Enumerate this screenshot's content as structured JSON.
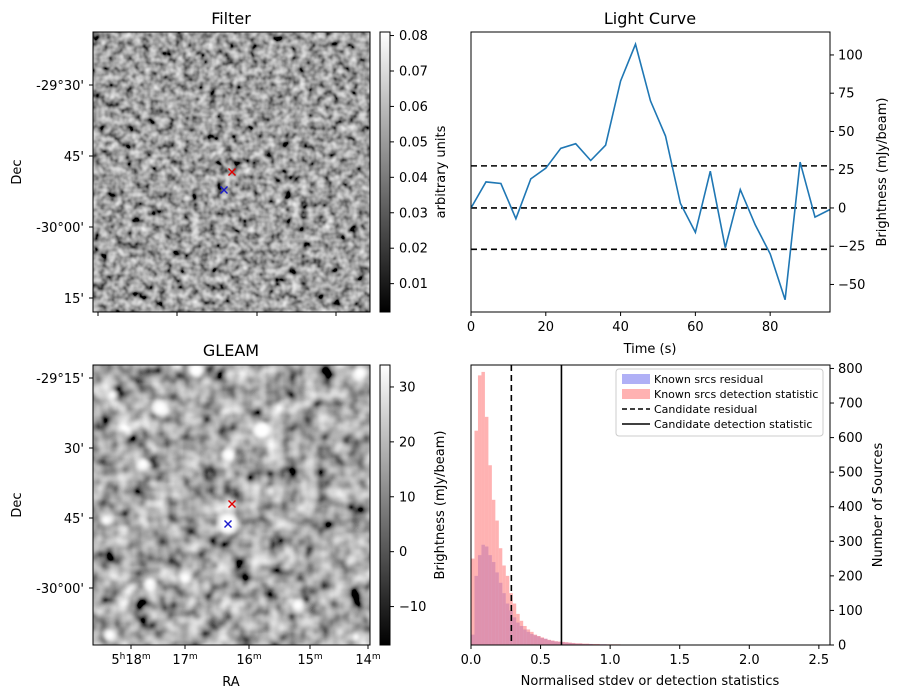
{
  "colors": {
    "line": "#1f77b4",
    "known_residual_hist": "#7b7bf0",
    "known_detection_hist": "#ff7f7f",
    "candidate_red": "#e00000",
    "candidate_blue": "#1a1acc"
  },
  "chart_data": [
    {
      "type": "heatmap",
      "panel": "filter",
      "title": "Filter",
      "xlabel": "",
      "ylabel": "Dec",
      "y_tick_labels": [
        "-29°30'",
        "45'",
        "-30°00'",
        "15'"
      ],
      "colorbar": {
        "label": "arbitrary units",
        "range": [
          0.002,
          0.081
        ],
        "tick_values": [
          0.01,
          0.02,
          0.03,
          0.04,
          0.05,
          0.06,
          0.07,
          0.08
        ],
        "tick_labels": [
          "0.01",
          "0.02",
          "0.03",
          "0.04",
          "0.05",
          "0.06",
          "0.07",
          "0.08"
        ]
      },
      "markers": [
        {
          "symbol": "x",
          "color": "red",
          "fx": 0.5,
          "fy": 0.5
        },
        {
          "symbol": "x",
          "color": "blue",
          "fx": 0.47,
          "fy": 0.565
        }
      ]
    },
    {
      "type": "line",
      "panel": "light_curve",
      "title": "Light Curve",
      "xlabel": "Time (s)",
      "ylabel": "Brightness (mJy/beam)",
      "xlim": [
        0,
        96
      ],
      "ylim": [
        -68,
        115
      ],
      "x_ticks": [
        0,
        20,
        40,
        60,
        80
      ],
      "y_ticks": [
        -50,
        -25,
        0,
        25,
        50,
        75,
        100
      ],
      "x": [
        0,
        4,
        8,
        12,
        16,
        20,
        24,
        28,
        32,
        36,
        40,
        44,
        48,
        52,
        56,
        60,
        64,
        68,
        72,
        76,
        80,
        84,
        88,
        92,
        96
      ],
      "y": [
        0,
        17,
        16,
        -7,
        19,
        26,
        39,
        42,
        31,
        41,
        83,
        107,
        70,
        47,
        3,
        -16,
        24,
        -26,
        12,
        -11,
        -30,
        -60,
        30,
        -6,
        -1
      ],
      "hlines": [
        27.5,
        0,
        -27
      ]
    },
    {
      "type": "heatmap",
      "panel": "gleam",
      "title": "GLEAM",
      "xlabel": "RA",
      "ylabel": "Dec",
      "x_tick_labels": [
        "5h18m",
        "17m",
        "16m",
        "15m",
        "14m"
      ],
      "y_tick_labels": [
        "-29°15'",
        "30'",
        "45'",
        "-30°00'"
      ],
      "colorbar": {
        "label": "Brightness (mJy/beam)",
        "range": [
          -17,
          34
        ],
        "tick_values": [
          -10,
          0,
          10,
          20,
          30
        ],
        "tick_labels": [
          "−10",
          "0",
          "10",
          "20",
          "30"
        ]
      },
      "markers": [
        {
          "symbol": "x",
          "color": "red",
          "fx": 0.5,
          "fy": 0.485
        },
        {
          "symbol": "x",
          "color": "blue",
          "fx": 0.49,
          "fy": 0.565
        }
      ]
    },
    {
      "type": "bar",
      "panel": "histogram",
      "title": "",
      "xlabel": "Normalised stdev or detection statistics",
      "ylabel": "Number of Sources",
      "xlim": [
        0,
        2.58
      ],
      "ylim": [
        0,
        810
      ],
      "x_ticks": [
        0,
        0.5,
        1,
        1.5,
        2,
        2.5
      ],
      "x_tick_labels": [
        "0.0",
        "0.5",
        "1.0",
        "1.5",
        "2.0",
        "2.5"
      ],
      "y_ticks": [
        0,
        100,
        200,
        300,
        400,
        500,
        600,
        700,
        800
      ],
      "bin_width": 0.025,
      "series": [
        {
          "name": "Known srcs residual",
          "values": [
            30,
            200,
            260,
            290,
            285,
            260,
            240,
            210,
            180,
            150,
            120,
            100,
            80,
            65,
            55,
            45,
            38,
            32,
            28,
            25,
            20,
            18,
            14,
            12,
            10,
            9,
            8,
            7,
            6,
            5,
            4,
            4,
            3,
            3,
            3,
            2,
            2,
            2,
            2,
            1,
            1,
            1
          ]
        },
        {
          "name": "Known srcs detection statistic",
          "values": [
            250,
            620,
            780,
            790,
            660,
            520,
            420,
            360,
            280,
            230,
            200,
            150,
            120,
            90,
            70,
            55,
            45,
            38,
            30,
            26,
            22,
            18,
            15,
            13,
            11,
            10,
            9,
            8,
            7,
            6,
            5,
            5,
            4,
            4,
            3,
            3,
            3,
            2,
            2,
            2,
            2,
            2,
            2,
            1,
            1,
            1,
            1,
            1,
            1,
            1,
            1,
            1,
            1,
            1,
            1,
            1,
            1,
            1,
            1,
            1,
            1,
            1,
            1,
            1,
            1,
            1,
            1,
            1,
            1,
            1,
            1,
            1,
            1,
            1,
            1,
            1,
            1,
            1,
            1,
            1,
            1,
            1,
            1,
            1,
            1,
            1,
            1,
            1,
            1,
            1,
            1,
            1,
            1,
            1,
            1,
            1,
            1,
            1,
            1,
            1
          ]
        }
      ],
      "vlines": [
        {
          "name": "Candidate residual",
          "x": 0.29,
          "style": "dashed"
        },
        {
          "name": "Candidate detection statistic",
          "x": 0.65,
          "style": "solid"
        }
      ],
      "left_axis_label": "Brightness (mJy/beam)"
    }
  ]
}
